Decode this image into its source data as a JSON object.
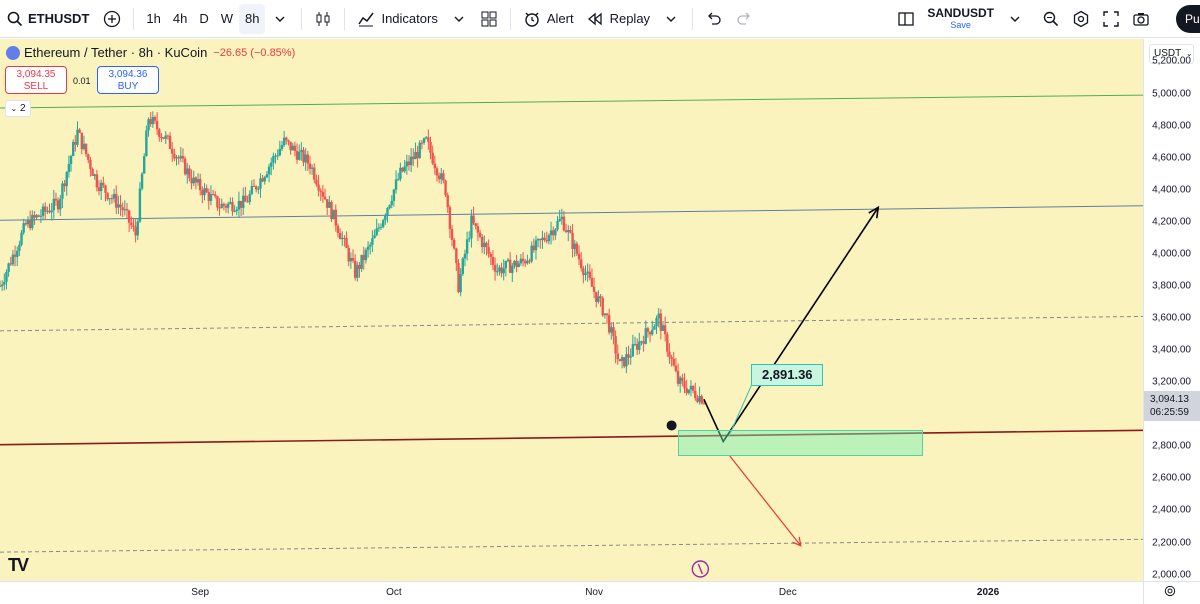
{
  "toolbar": {
    "symbol": "ETHUSDT",
    "intervals": [
      "1h",
      "4h",
      "D",
      "W",
      "8h"
    ],
    "selected_interval": "8h",
    "indicators_label": "Indicators",
    "alert_label": "Alert",
    "replay_label": "Replay",
    "watch_symbol": "SANDUSDT",
    "save_label": "Save",
    "publish_label": "Pu"
  },
  "legend": {
    "title": "Ethereum / Tether · 8h · KuCoin",
    "change": "−26.65 (−0.85%)",
    "sell_price": "3,094.35",
    "sell_label": "SELL",
    "spread": "0.01",
    "buy_price": "3,094.36",
    "buy_label": "BUY",
    "collapse_count": "2"
  },
  "axis": {
    "currency": "USDT",
    "ticks": [
      "5,200.00",
      "5,000.00",
      "4,800.00",
      "4,600.00",
      "4,400.00",
      "4,200.00",
      "4,000.00",
      "3,800.00",
      "3,600.00",
      "3,400.00",
      "3,200.00",
      "2,800.00",
      "2,600.00",
      "2,400.00",
      "2,200.00",
      "2,000.00"
    ],
    "last_price": "3,094.13",
    "countdown": "06:25:59"
  },
  "time_axis": {
    "labels": [
      "Sep",
      "Oct",
      "Nov",
      "Dec",
      "2026"
    ]
  },
  "annotation": {
    "target_price": "2,891.36"
  },
  "chart_data": {
    "type": "candlestick",
    "symbol": "ETHUSDT",
    "interval": "8h",
    "y_range": [
      1960,
      5340
    ],
    "x_range": [
      "2025-08-01",
      "2026-01-25"
    ],
    "last_price": 3094.13,
    "levels": [
      {
        "kind": "trendline",
        "color": "#4caf50",
        "from": {
          "date": "2025-08-01",
          "price": 4910
        },
        "to": {
          "date": "2026-01-25",
          "price": 4990
        }
      },
      {
        "kind": "trendline",
        "color": "#5b7fa8",
        "from": {
          "date": "2025-08-01",
          "price": 4210
        },
        "to": {
          "date": "2026-01-25",
          "price": 4300
        }
      },
      {
        "kind": "dashed",
        "color": "#888888",
        "from": {
          "date": "2025-08-01",
          "price": 3520
        },
        "to": {
          "date": "2026-01-25",
          "price": 3610
        }
      },
      {
        "kind": "trendline",
        "color": "#8b1a1a",
        "from": {
          "date": "2025-08-01",
          "price": 2810
        },
        "to": {
          "date": "2026-01-25",
          "price": 2900
        }
      },
      {
        "kind": "dashed",
        "color": "#888888",
        "from": {
          "date": "2025-08-01",
          "price": 2140
        },
        "to": {
          "date": "2026-01-25",
          "price": 2220
        }
      }
    ],
    "price_path": [
      {
        "date": "2025-08-01",
        "price": 3800
      },
      {
        "date": "2025-08-05",
        "price": 4180
      },
      {
        "date": "2025-08-10",
        "price": 4320
      },
      {
        "date": "2025-08-13",
        "price": 4760
      },
      {
        "date": "2025-08-16",
        "price": 4450
      },
      {
        "date": "2025-08-20",
        "price": 4280
      },
      {
        "date": "2025-08-22",
        "price": 4120
      },
      {
        "date": "2025-08-24",
        "price": 4850
      },
      {
        "date": "2025-08-27",
        "price": 4700
      },
      {
        "date": "2025-08-31",
        "price": 4450
      },
      {
        "date": "2025-09-04",
        "price": 4300
      },
      {
        "date": "2025-09-08",
        "price": 4320
      },
      {
        "date": "2025-09-14",
        "price": 4700
      },
      {
        "date": "2025-09-18",
        "price": 4560
      },
      {
        "date": "2025-09-22",
        "price": 4200
      },
      {
        "date": "2025-09-25",
        "price": 3880
      },
      {
        "date": "2025-09-28",
        "price": 4100
      },
      {
        "date": "2025-10-02",
        "price": 4500
      },
      {
        "date": "2025-10-06",
        "price": 4700
      },
      {
        "date": "2025-10-09",
        "price": 4400
      },
      {
        "date": "2025-10-11",
        "price": 3800
      },
      {
        "date": "2025-10-13",
        "price": 4200
      },
      {
        "date": "2025-10-17",
        "price": 3900
      },
      {
        "date": "2025-10-21",
        "price": 3950
      },
      {
        "date": "2025-10-27",
        "price": 4220
      },
      {
        "date": "2025-10-31",
        "price": 3850
      },
      {
        "date": "2025-11-03",
        "price": 3600
      },
      {
        "date": "2025-11-05",
        "price": 3300
      },
      {
        "date": "2025-11-09",
        "price": 3500
      },
      {
        "date": "2025-11-11",
        "price": 3600
      },
      {
        "date": "2025-11-14",
        "price": 3200
      },
      {
        "date": "2025-11-18",
        "price": 3094
      }
    ],
    "projection": [
      {
        "date": "2025-11-18",
        "price": 3094
      },
      {
        "date": "2025-11-21",
        "price": 2830
      },
      {
        "date": "2025-12-15",
        "price": 4290
      }
    ],
    "bearish_alternative": [
      {
        "date": "2025-11-22",
        "price": 2740
      },
      {
        "date": "2025-12-03",
        "price": 2180
      }
    ],
    "target_zone": {
      "from_date": "2025-11-14",
      "to_date": "2025-12-22",
      "low": 2740,
      "high": 2900
    },
    "target_label": 2891.36
  }
}
